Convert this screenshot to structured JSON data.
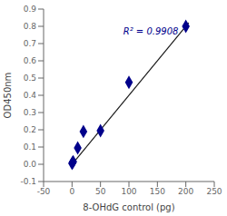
{
  "chart_data": {
    "type": "scatter",
    "title": "",
    "xlabel": "8-OHdG control (pg)",
    "ylabel": "OD450nm",
    "series": [
      {
        "type": "scatter",
        "color": "#00008B",
        "marker": "diamond",
        "x": [
          0,
          1,
          2,
          10,
          20,
          50,
          100,
          200
        ],
        "values": [
          0.005,
          0.01,
          0.015,
          0.095,
          0.19,
          0.195,
          0.475,
          0.8
        ]
      },
      {
        "type": "line",
        "color": "#1a1a1a",
        "line_style": "solid",
        "x": [
          -2,
          205
        ],
        "values": [
          -0.008,
          0.82
        ]
      }
    ],
    "annotations": [
      {
        "text": "R² = 0.9908",
        "x": 90,
        "y": 0.755,
        "color": "#00008B"
      }
    ],
    "xlim": [
      -50,
      250
    ],
    "ylim": [
      -0.1,
      0.9
    ],
    "xticks": [
      -50,
      0,
      50,
      100,
      150,
      200,
      250
    ],
    "yticks": [
      -0.1,
      {
        "value": 0,
        "label": "0.0"
      },
      0.1,
      0.2,
      0.3,
      0.4,
      0.5,
      0.6,
      0.7,
      0.8,
      0.9
    ],
    "grid": false
  }
}
